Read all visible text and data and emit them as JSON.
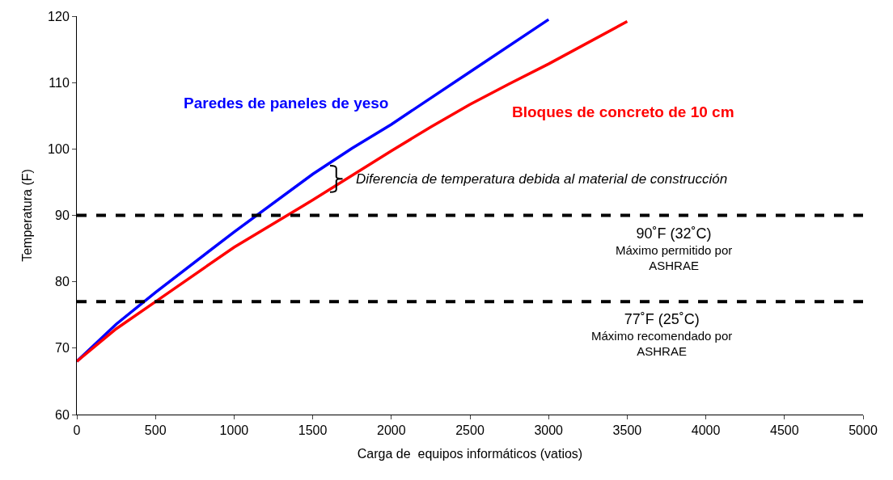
{
  "chart_data": {
    "type": "line",
    "xlabel": "Carga de  equipos informáticos (vatios)",
    "ylabel": "Temperatura (F)",
    "xlim": [
      0,
      5000
    ],
    "xticks": [
      0,
      500,
      1000,
      1500,
      2000,
      2500,
      3000,
      3500,
      4000,
      4500,
      5000
    ],
    "ylim": [
      60,
      120
    ],
    "yticks": [
      60,
      70,
      80,
      90,
      100,
      110,
      120
    ],
    "legend": false,
    "marker": "none",
    "line_style": "solid",
    "series": [
      {
        "name": "Paredes de paneles de yeso",
        "color": "#0000ff",
        "x": [
          0,
          250,
          500,
          1000,
          1500,
          1750,
          2000,
          2500,
          3000
        ],
        "values": [
          68,
          73.6,
          78.4,
          87.5,
          96.2,
          100.1,
          103.7,
          111.6,
          119.5
        ]
      },
      {
        "name": "Bloques de concreto de 10 cm",
        "color": "#ff0000",
        "x": [
          0,
          250,
          500,
          1000,
          1500,
          2000,
          2250,
          2500,
          2750,
          3000,
          3500
        ],
        "values": [
          68,
          72.9,
          77,
          85.2,
          92.3,
          99.7,
          103.3,
          106.7,
          109.8,
          112.8,
          119.2
        ]
      }
    ],
    "ref_lines": [
      {
        "axis": "y",
        "value": 90,
        "label": "90˚F (32˚C)\nMáximo permitido por\nASHRAE",
        "color": "#000000",
        "line_style": "dashed"
      },
      {
        "axis": "y",
        "value": 77,
        "label": "77˚F (25˚C)\nMáximo recomendado por\nASHRAE",
        "color": "#000000",
        "line_style": "dashed"
      }
    ],
    "annotations": [
      {
        "text": "Diferencia de temperatura debida al material de construcción",
        "x": 1650,
        "y": 95.5
      }
    ]
  }
}
